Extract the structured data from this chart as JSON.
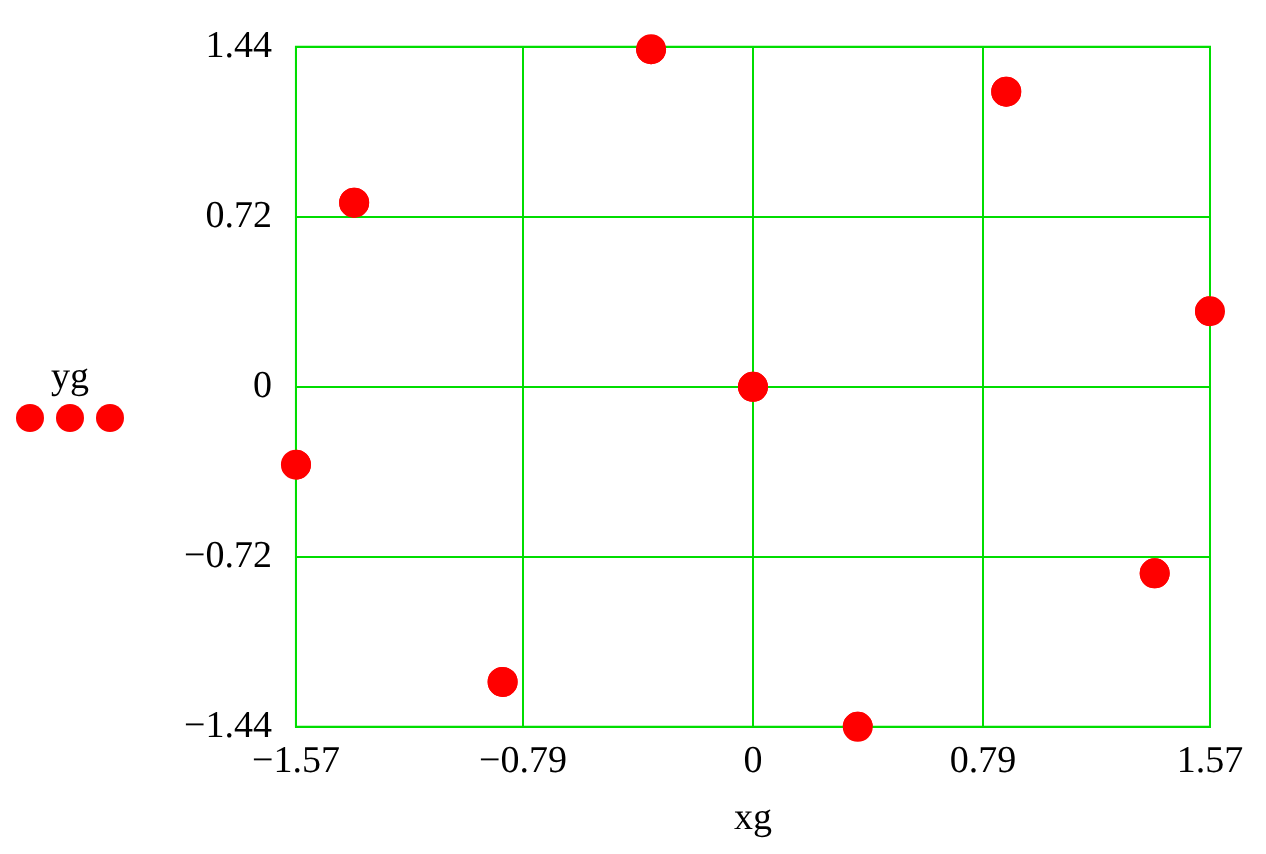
{
  "chart_data": {
    "type": "scatter",
    "xlabel": "xg",
    "ylabel": "yg",
    "marker": "circle",
    "grid": true,
    "xlim": [
      -1.57,
      1.57
    ],
    "ylim": [
      -1.44,
      1.44
    ],
    "xticks": [
      {
        "value": -1.57,
        "label": "−1.57"
      },
      {
        "value": -0.79,
        "label": "−0.79"
      },
      0,
      0.79,
      1.57
    ],
    "yticks": [
      {
        "value": -1.44,
        "label": "−1.44"
      },
      {
        "value": -0.72,
        "label": "−0.72"
      },
      0,
      0.72,
      1.44
    ],
    "series": [
      {
        "color": "#ff0000",
        "x": [
          -1.57,
          -1.37,
          -0.86,
          -0.35,
          0,
          0.36,
          0.87,
          1.38,
          1.57
        ],
        "values": [
          -0.33,
          0.78,
          -1.25,
          1.43,
          0,
          -1.44,
          1.25,
          -0.79,
          0.32
        ]
      }
    ]
  }
}
